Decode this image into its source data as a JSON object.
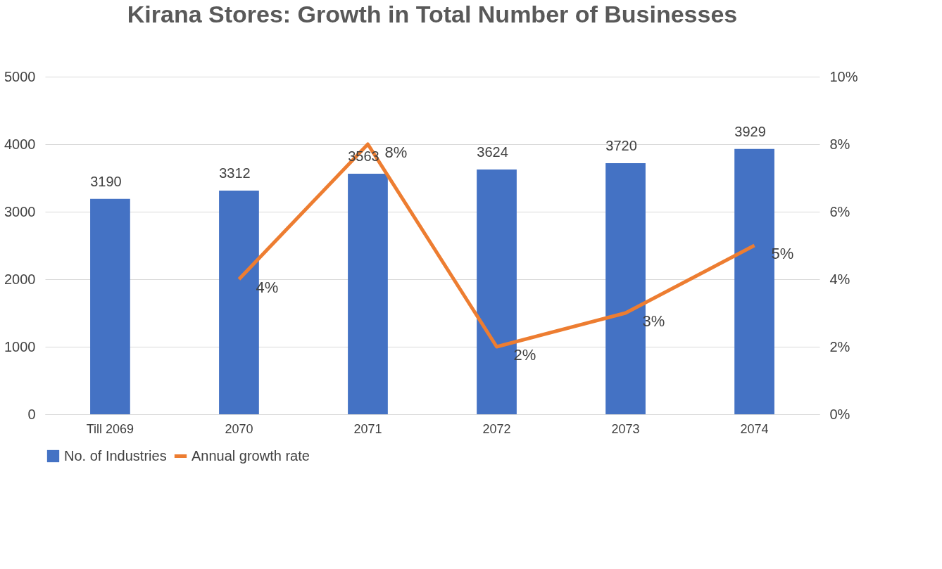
{
  "chart_data": {
    "type": "bar",
    "title": "Kirana Stores: Growth in Total Number of Businesses",
    "categories": [
      "Till 2069",
      "2070",
      "2071",
      "2072",
      "2073",
      "2074"
    ],
    "series": [
      {
        "name": "No. of Industries",
        "color": "#4472c4",
        "values": [
          3190,
          3312,
          3563,
          3624,
          3720,
          3929
        ],
        "value_labels": [
          "3190",
          "3312",
          "3563",
          "3624",
          "3720",
          "3929"
        ]
      },
      {
        "name": "Annual growth rate",
        "type": "line",
        "axis": "y2",
        "color": "#ed7d31",
        "values": [
          null,
          4,
          8,
          2,
          3,
          5
        ],
        "value_labels": [
          null,
          "4%",
          "8%",
          "2%",
          "3%",
          "5%"
        ]
      }
    ],
    "ylim": [
      0,
      5000
    ],
    "yticks": [
      0,
      1000,
      2000,
      3000,
      4000,
      5000
    ],
    "y2lim": [
      0,
      10
    ],
    "y2ticks": [
      {
        "value": 0,
        "label": "0%"
      },
      {
        "value": 2,
        "label": "2%"
      },
      {
        "value": 4,
        "label": "4%"
      },
      {
        "value": 6,
        "label": "6%"
      },
      {
        "value": 8,
        "label": "8%"
      },
      {
        "value": 10,
        "label": "10%"
      }
    ],
    "grid": "y",
    "legend": "bottom",
    "marker": "none",
    "line_style": "solid"
  }
}
